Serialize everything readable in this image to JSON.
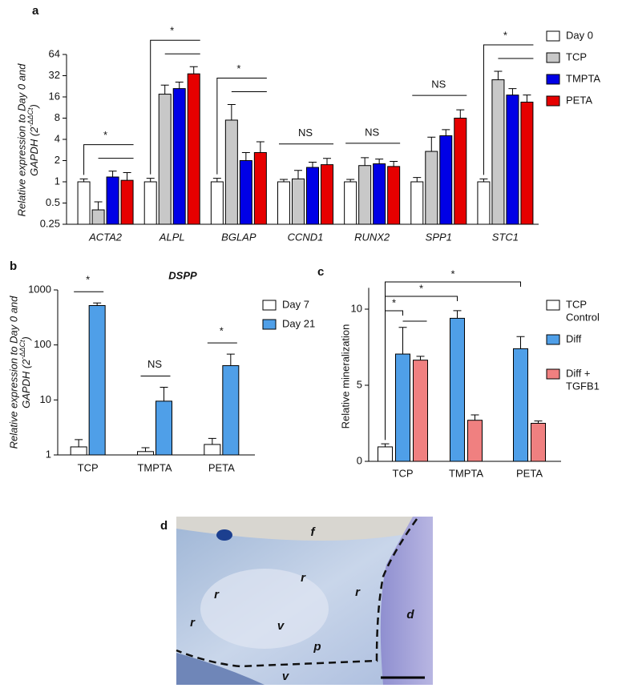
{
  "chart_data": [
    {
      "panel": "a",
      "type": "bar",
      "yscale": "log",
      "ylabel": [
        "Relative expression to Day 0 and",
        "GAPDH (2",
        "-ΔΔCt",
        ")"
      ],
      "categories": [
        "ACTA2",
        "ALPL",
        "BGLAP",
        "CCND1",
        "RUNX2",
        "SPP1",
        "STC1"
      ],
      "series": [
        {
          "name": "Day 0",
          "color": "#ffffff",
          "values": [
            1,
            1,
            1,
            1,
            1,
            1,
            1
          ],
          "errors": [
            0.1,
            0.12,
            0.12,
            0.08,
            0.08,
            0.15,
            0.1
          ]
        },
        {
          "name": "TCP",
          "color": "#c8c8c8",
          "values": [
            0.4,
            17.5,
            7.5,
            1.1,
            1.7,
            2.7,
            28
          ],
          "errors": [
            0.12,
            6,
            5,
            0.35,
            0.5,
            1.6,
            9
          ]
        },
        {
          "name": "TMPTA",
          "color": "#0000e6",
          "values": [
            1.17,
            21,
            2.0,
            1.6,
            1.8,
            4.5,
            17
          ],
          "errors": [
            0.25,
            5,
            0.6,
            0.3,
            0.3,
            1.0,
            4
          ]
        },
        {
          "name": "PETA",
          "color": "#e60000",
          "values": [
            1.05,
            34,
            2.6,
            1.75,
            1.65,
            8,
            13.5
          ],
          "errors": [
            0.3,
            9,
            1.1,
            0.4,
            0.3,
            2.5,
            3.5
          ]
        }
      ],
      "annotations": [
        "*",
        "*",
        "*",
        "NS",
        "NS",
        "NS",
        "*"
      ],
      "ylim": [
        0.25,
        64
      ],
      "yticks": [
        0.25,
        0.5,
        1,
        2,
        4,
        8,
        16,
        32,
        64
      ]
    },
    {
      "panel": "b",
      "type": "bar",
      "yscale": "log",
      "title": "DSPP",
      "ylabel": [
        "Relative expression to Day 0 and",
        "GAPDH (2",
        "-ΔΔCt",
        ")"
      ],
      "categories": [
        "TCP",
        "TMPTA",
        "PETA"
      ],
      "series": [
        {
          "name": "Day 7",
          "color": "#ffffff",
          "values": [
            1.4,
            1.15,
            1.55
          ],
          "errors": [
            0.5,
            0.2,
            0.45
          ]
        },
        {
          "name": "Day 21",
          "color": "#4f9fe8",
          "values": [
            520,
            9.5,
            42
          ],
          "errors": [
            60,
            7.5,
            26
          ]
        }
      ],
      "annotations": [
        "*",
        "NS",
        "*"
      ],
      "ylim": [
        1,
        1000
      ],
      "yticks": [
        1,
        10,
        100,
        1000
      ]
    },
    {
      "panel": "c",
      "type": "bar",
      "yscale": "linear",
      "ylabel": [
        "Relative mineralization"
      ],
      "categories": [
        "TCP",
        "TMPTA",
        "PETA"
      ],
      "series": [
        {
          "name": [
            "TCP",
            "Control"
          ],
          "color": "#ffffff",
          "values": [
            0.95,
            null,
            null
          ],
          "errors": [
            0.2,
            null,
            null
          ]
        },
        {
          "name": [
            "Diff"
          ],
          "color": "#4f9fe8",
          "values": [
            7.05,
            9.4,
            7.4
          ],
          "errors": [
            1.75,
            0.5,
            0.8
          ]
        },
        {
          "name": [
            "Diff +",
            "TGFB1"
          ],
          "color": "#f08080",
          "values": [
            6.65,
            2.7,
            2.5
          ],
          "errors": [
            0.25,
            0.35,
            0.15
          ]
        }
      ],
      "annotations": [
        "*",
        "*",
        "*"
      ],
      "ylim": [
        0,
        11.4
      ],
      "yticks": [
        0,
        5,
        10
      ]
    }
  ],
  "panel_d": {
    "panel": "d",
    "labels": [
      "f",
      "r",
      "r",
      "r",
      "r",
      "v",
      "p",
      "v",
      "d"
    ]
  }
}
